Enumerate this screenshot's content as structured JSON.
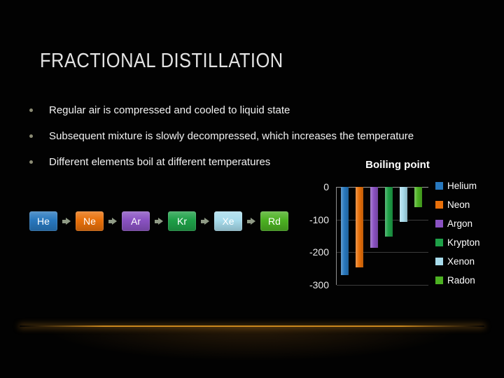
{
  "slide": {
    "title": "FRACTIONAL DISTILLATION",
    "text_color": "#F2F2F2",
    "bullet_color": "#8C8C74",
    "accent_glow_color": "#C8861E",
    "bullets": [
      "Regular air is compressed and cooled to liquid state",
      "Subsequent mixture is slowly decompressed, which increases the temperature",
      "Different elements boil at different temperatures"
    ],
    "flow": {
      "arrow_color": "#8F9A85",
      "items": [
        {
          "label": "He",
          "color": "#2878BE",
          "text_color": "#FFFFFF"
        },
        {
          "label": "Ne",
          "color": "#E8700A",
          "text_color": "#FFFFFF"
        },
        {
          "label": "Ar",
          "color": "#8A52C2",
          "text_color": "#FFFFFF"
        },
        {
          "label": "Kr",
          "color": "#1EA048",
          "text_color": "#FFFFFF"
        },
        {
          "label": "Xe",
          "color": "#A8DCEC",
          "text_color": "#FFFFFF"
        },
        {
          "label": "Rd",
          "color": "#4CB122",
          "text_color": "#FFFFFF"
        }
      ]
    }
  },
  "chart_data": {
    "type": "bar",
    "title": "Boiling point",
    "categories": [
      "Helium",
      "Neon",
      "Argon",
      "Krypton",
      "Xenon",
      "Radon"
    ],
    "values": [
      -269,
      -246,
      -186,
      -153,
      -108,
      -62
    ],
    "series_colors": [
      "#2878BE",
      "#E8700A",
      "#8A52C2",
      "#1EA048",
      "#A8DCEC",
      "#4CB122"
    ],
    "xlabel": "",
    "ylabel": "",
    "ylim": [
      -300,
      0
    ],
    "yticks": [
      0,
      -100,
      -200,
      -300
    ],
    "grid": true,
    "legend_position": "right"
  }
}
